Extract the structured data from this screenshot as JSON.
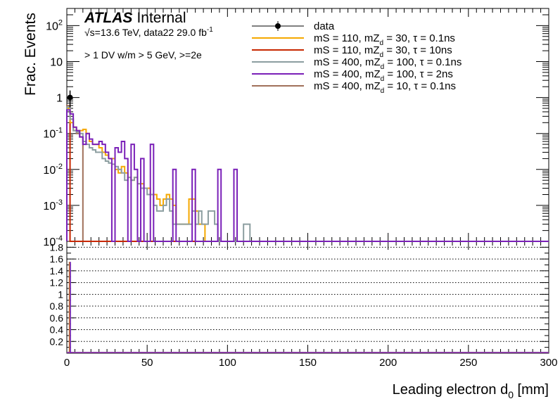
{
  "chart_data": {
    "type": "histogram",
    "experiment": "ATLAS",
    "status": "Internal",
    "energy_label": "√s=13.6 TeV, data22 29.0 fb",
    "energy_label_exp": "-1",
    "selection": "> 1 DV w/m > 5 GeV, >=2e",
    "xlabel": "Leading electron d",
    "xlabel_sub": "0",
    "xlabel_unit": " [mm]",
    "ylabel": "Frac. Events",
    "xlim": [
      0,
      300
    ],
    "ylim": [
      0.0001,
      300
    ],
    "y_log": true,
    "ratio_ylim": [
      0,
      1.9
    ],
    "x_ticks": [
      0,
      50,
      100,
      150,
      200,
      250,
      300
    ],
    "y_ticks": [
      {
        "value": 100,
        "base": "10",
        "exp": "2"
      },
      {
        "value": 10,
        "base": "10",
        "exp": ""
      },
      {
        "value": 1,
        "base": "1",
        "exp": ""
      },
      {
        "value": 0.1,
        "base": "10",
        "exp": "-1"
      },
      {
        "value": 0.01,
        "base": "10",
        "exp": "-2"
      },
      {
        "value": 0.001,
        "base": "10",
        "exp": "-3"
      },
      {
        "value": 0.0001,
        "base": "10",
        "exp": "-4"
      }
    ],
    "ratio_ticks": [
      "0.2",
      "0.4",
      "0.6",
      "0.8",
      "1",
      "1.2",
      "1.4",
      "1.6",
      "1.8"
    ],
    "ratio_tick_values": [
      0.2,
      0.4,
      0.6,
      0.8,
      1.0,
      1.2,
      1.4,
      1.6,
      1.8
    ],
    "bin_width": 2,
    "legend": [
      {
        "text": "data",
        "color": "#000000",
        "marker": true
      },
      {
        "text": "mS = 110, mZ",
        "sub": "d",
        "rest": " = 30, τ = 0.1ns",
        "color": "#f5a800"
      },
      {
        "text": "mS = 110, mZ",
        "sub": "d",
        "rest": " = 30, τ = 10ns",
        "color": "#c82800"
      },
      {
        "text": "mS = 400, mZ",
        "sub": "d",
        "rest": " = 100, τ = 0.1ns",
        "color": "#8c9ea0"
      },
      {
        "text": "mS = 400, mZ",
        "sub": "d",
        "rest": " = 100, τ = 2ns",
        "color": "#7a20b8"
      },
      {
        "text": "mS = 400, mZ",
        "sub": "d",
        "rest": " = 10, τ = 0.1ns",
        "color": "#a0705a"
      }
    ],
    "data_points": [
      {
        "x": 2,
        "y": 1.0
      }
    ],
    "series": [
      {
        "name": "mS = 400, mZd = 10, τ = 0.1ns",
        "color": "#a0705a",
        "bins": [
          [
            0,
            0.6
          ],
          [
            2,
            0.25
          ],
          [
            4,
            0.12
          ],
          [
            6,
            0.1
          ],
          [
            8,
            0.08
          ],
          [
            10,
            0
          ]
        ]
      },
      {
        "name": "mS = 110, mZd = 30, τ = 10ns",
        "color": "#c82800",
        "bins": [
          [
            0,
            0.5
          ]
        ]
      },
      {
        "name": "mS = 110, mZd = 30, τ = 0.1ns",
        "color": "#f5a800",
        "bins": [
          [
            0,
            0.5
          ],
          [
            2,
            0.2
          ],
          [
            4,
            0.15
          ],
          [
            6,
            0.12
          ],
          [
            8,
            0.12
          ],
          [
            10,
            0.13
          ],
          [
            12,
            0.1
          ],
          [
            14,
            0.06
          ],
          [
            16,
            0.05
          ],
          [
            18,
            0.05
          ],
          [
            20,
            0.04
          ],
          [
            22,
            0.03
          ],
          [
            24,
            0.025
          ],
          [
            26,
            0.02
          ],
          [
            28,
            0.02
          ],
          [
            30,
            0.01
          ],
          [
            32,
            0.008
          ],
          [
            34,
            0.012
          ],
          [
            36,
            0.008
          ],
          [
            38,
            0.006
          ],
          [
            40,
            0.005
          ],
          [
            42,
            0.006
          ],
          [
            44,
            0.004
          ],
          [
            46,
            0.004
          ],
          [
            48,
            0.003
          ],
          [
            50,
            0.003
          ],
          [
            52,
            0.002
          ],
          [
            54,
            0.002
          ],
          [
            56,
            0.0015
          ],
          [
            58,
            0.001
          ],
          [
            60,
            0.0015
          ],
          [
            62,
            0.002
          ],
          [
            64,
            0.0015
          ],
          [
            66,
            0.001
          ],
          [
            68,
            0.0003
          ],
          [
            70,
            0.0003
          ],
          [
            72,
            0.0003
          ],
          [
            74,
            0.0003
          ],
          [
            76,
            0.0015
          ],
          [
            78,
            0.0015
          ],
          [
            80,
            0.0007
          ],
          [
            82,
            0.0003
          ],
          [
            84,
            0.0003
          ],
          [
            86,
            0
          ]
        ]
      },
      {
        "name": "mS = 400, mZd = 100, τ = 0.1ns",
        "color": "#8c9ea0",
        "bins": [
          [
            0,
            0.55
          ],
          [
            2,
            0.25
          ],
          [
            4,
            0.12
          ],
          [
            6,
            0.11
          ],
          [
            8,
            0.1
          ],
          [
            10,
            0.06
          ],
          [
            12,
            0.05
          ],
          [
            14,
            0.04
          ],
          [
            16,
            0.035
          ],
          [
            18,
            0.03
          ],
          [
            20,
            0.03
          ],
          [
            22,
            0.02
          ],
          [
            24,
            0.017
          ],
          [
            26,
            0.015
          ],
          [
            28,
            0.014
          ],
          [
            30,
            0.012
          ],
          [
            32,
            0.01
          ],
          [
            34,
            0.008
          ],
          [
            36,
            0.005
          ],
          [
            38,
            0.006
          ],
          [
            40,
            0.005
          ],
          [
            42,
            0.006
          ],
          [
            44,
            0.004
          ],
          [
            46,
            0.003
          ],
          [
            48,
            0.003
          ],
          [
            50,
            0.002
          ],
          [
            52,
            0.002
          ],
          [
            54,
            0.001
          ],
          [
            56,
            0.0007
          ],
          [
            58,
            0.0007
          ],
          [
            60,
            0.001
          ],
          [
            62,
            0.0015
          ],
          [
            64,
            0.0007
          ],
          [
            66,
            0.0003
          ],
          [
            68,
            0.0003
          ],
          [
            70,
            0.0003
          ],
          [
            72,
            0.0003
          ],
          [
            74,
            0.0003
          ],
          [
            76,
            0.0003
          ],
          [
            78,
            0.0007
          ],
          [
            80,
            0.0003
          ],
          [
            82,
            0.0007
          ],
          [
            84,
            0.0003
          ],
          [
            86,
            0.0003
          ],
          [
            88,
            0.0007
          ],
          [
            90,
            0.0007
          ],
          [
            92,
            0.0003
          ],
          [
            94,
            0.0001
          ],
          [
            96,
            0.0001
          ],
          [
            98,
            0.0001
          ],
          [
            100,
            0.0001
          ],
          [
            102,
            0.0001
          ],
          [
            104,
            0.0001
          ],
          [
            106,
            0.0001
          ],
          [
            108,
            0.0001
          ],
          [
            110,
            0.0003
          ],
          [
            112,
            0.0003
          ],
          [
            114,
            0
          ]
        ]
      },
      {
        "name": "mS = 400, mZd = 100, τ = 2ns",
        "color": "#7a20b8",
        "bins": [
          [
            0,
            0.45
          ],
          [
            2,
            0.35
          ],
          [
            4,
            0.15
          ],
          [
            6,
            0.12
          ],
          [
            8,
            0.08
          ],
          [
            10,
            0.05
          ],
          [
            12,
            0.1
          ],
          [
            14,
            0.07
          ],
          [
            16,
            0.05
          ],
          [
            18,
            0.05
          ],
          [
            20,
            0.06
          ],
          [
            22,
            0.05
          ],
          [
            24,
            0.03
          ],
          [
            26,
            0.02
          ],
          [
            28,
            0.0001
          ],
          [
            30,
            0.04
          ],
          [
            32,
            0.03
          ],
          [
            34,
            0.06
          ],
          [
            36,
            0.02
          ],
          [
            38,
            0.0001
          ],
          [
            40,
            0.05
          ],
          [
            42,
            0.01
          ],
          [
            44,
            0.0001
          ],
          [
            46,
            0.02
          ],
          [
            48,
            0.0001
          ],
          [
            50,
            0.0001
          ],
          [
            52,
            0.05
          ],
          [
            54,
            0.0001
          ],
          [
            56,
            0.0001
          ],
          [
            58,
            0.0001
          ],
          [
            60,
            0.0001
          ],
          [
            62,
            0.0001
          ],
          [
            64,
            0.0001
          ],
          [
            66,
            0.01
          ],
          [
            68,
            0.0001
          ],
          [
            70,
            0.0001
          ],
          [
            72,
            0.0001
          ],
          [
            74,
            0.0001
          ],
          [
            76,
            0.0001
          ],
          [
            78,
            0.01
          ],
          [
            80,
            0.0001
          ],
          [
            82,
            0.0001
          ],
          [
            84,
            0.0001
          ],
          [
            86,
            0.0001
          ],
          [
            88,
            0.0001
          ],
          [
            90,
            0.0001
          ],
          [
            92,
            0.0001
          ],
          [
            94,
            0.01
          ],
          [
            96,
            0.0001
          ],
          [
            98,
            0.0001
          ],
          [
            100,
            0.0001
          ],
          [
            102,
            0.0001
          ],
          [
            104,
            0.01
          ],
          [
            106,
            0
          ]
        ]
      }
    ]
  }
}
